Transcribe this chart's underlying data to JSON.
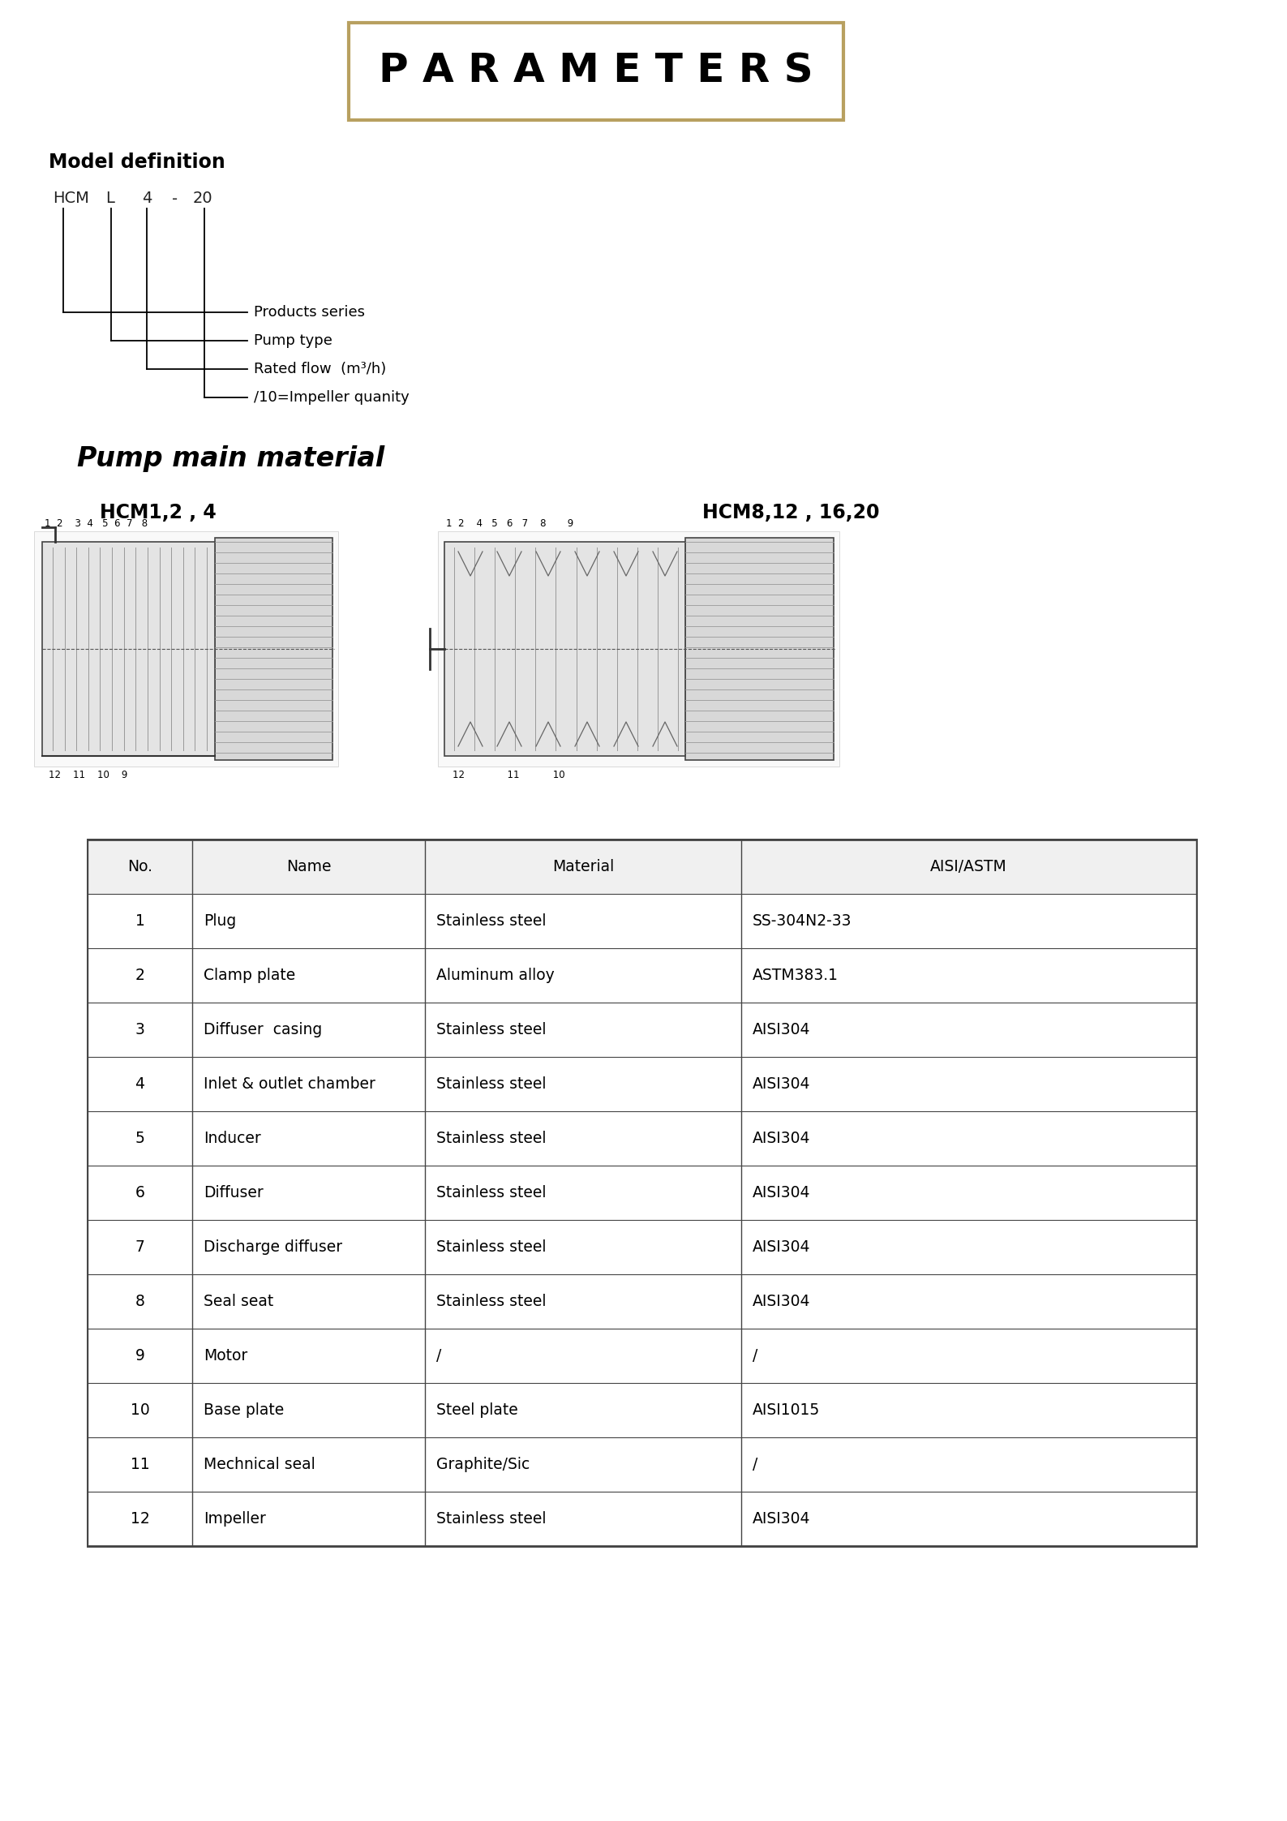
{
  "title": "P A R A M E T E R S",
  "title_box_color": "#b8a060",
  "background_color": "#ffffff",
  "model_definition_label": "Model definition",
  "model_tokens": [
    "HCM",
    "L",
    "4",
    "-",
    "20"
  ],
  "model_annotations": [
    "/10=Impeller quanity",
    "Rated flow  (m³/h)",
    "Pump type",
    "Products series"
  ],
  "pump_material_title": "Pump main material",
  "diagram_label_left": "HCM1,2 , 4",
  "diagram_label_right": "HCM8,12 , 16,20",
  "table_headers": [
    "No.",
    "Name",
    "Material",
    "AISI/ASTM"
  ],
  "table_rows": [
    [
      "1",
      "Plug",
      "Stainless steel",
      "SS-304N2-33"
    ],
    [
      "2",
      "Clamp plate",
      "Aluminum alloy",
      "ASTM383.1"
    ],
    [
      "3",
      "Diffuser  casing",
      "Stainless steel",
      "AISI304"
    ],
    [
      "4",
      "Inlet & outlet chamber",
      "Stainless steel",
      "AISI304"
    ],
    [
      "5",
      "Inducer",
      "Stainless steel",
      "AISI304"
    ],
    [
      "6",
      "Diffuser",
      "Stainless steel",
      "AISI304"
    ],
    [
      "7",
      "Discharge diffuser",
      "Stainless steel",
      "AISI304"
    ],
    [
      "8",
      "Seal seat",
      "Stainless steel",
      "AISI304"
    ],
    [
      "9",
      "Motor",
      "/",
      "/"
    ],
    [
      "10",
      "Base plate",
      "Steel plate",
      "AISI1015"
    ],
    [
      "11",
      "Mechnical seal",
      "Graphite/Sic",
      "/"
    ],
    [
      "12",
      "Impeller",
      "Stainless steel",
      "AISI304"
    ]
  ]
}
